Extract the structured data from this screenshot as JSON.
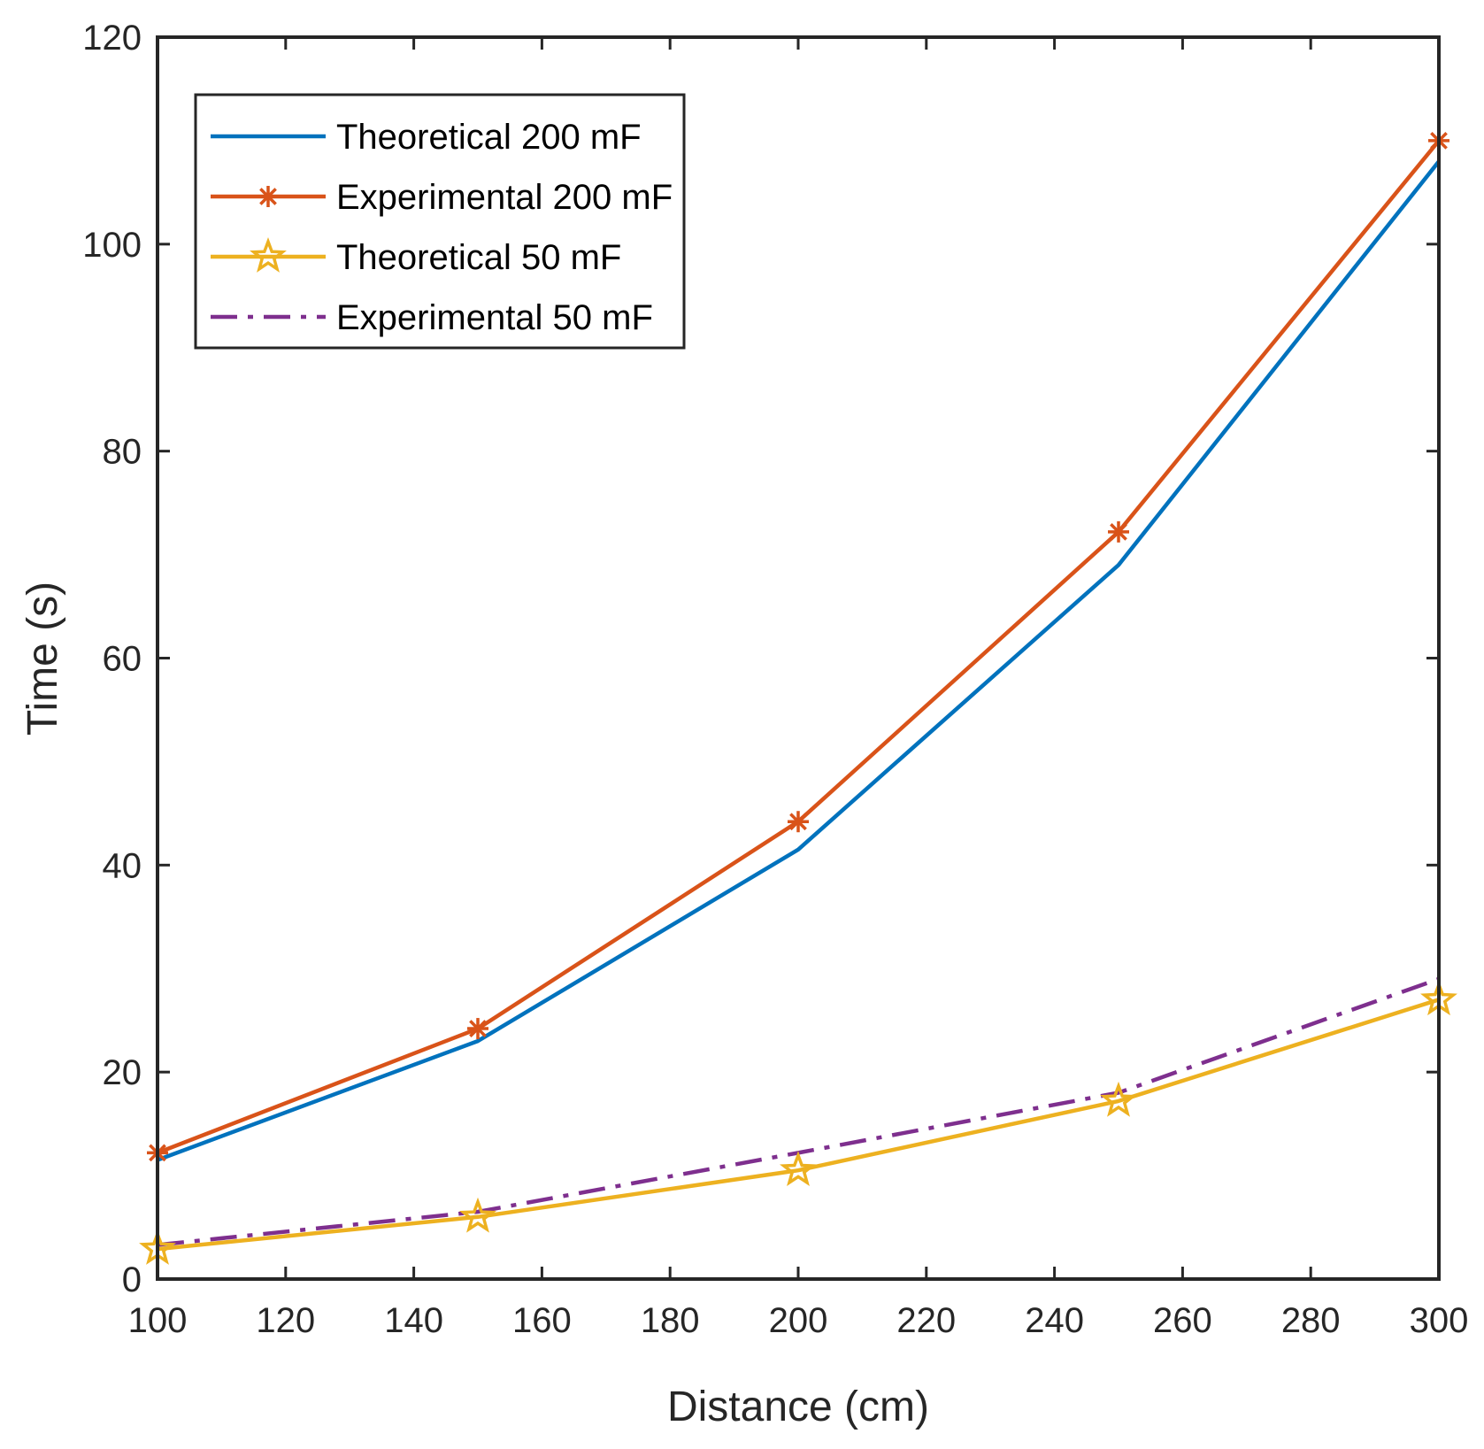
{
  "chart_data": {
    "type": "line",
    "title": "",
    "xlabel": "Distance (cm)",
    "ylabel": "Time (s)",
    "xlim": [
      100,
      300
    ],
    "ylim": [
      0,
      120
    ],
    "xticks": [
      100,
      120,
      140,
      160,
      180,
      200,
      220,
      240,
      260,
      280,
      300
    ],
    "yticks": [
      0,
      20,
      40,
      60,
      80,
      100,
      120
    ],
    "grid": false,
    "legend_position": "top-left",
    "x": [
      100,
      150,
      200,
      250,
      300
    ],
    "series": [
      {
        "name": "Theoretical 200 mF",
        "values": [
          11.5,
          23,
          41.5,
          69,
          108
        ],
        "color": "#0072BD",
        "marker": "none",
        "line_style": "solid"
      },
      {
        "name": "Experimental 200 mF",
        "values": [
          12.2,
          24.2,
          44.2,
          72.2,
          110
        ],
        "color": "#D95319",
        "marker": "asterisk",
        "line_style": "solid"
      },
      {
        "name": "Theoretical 50 mF",
        "values": [
          2.9,
          6.0,
          10.5,
          17.2,
          27.0
        ],
        "color": "#EDB120",
        "marker": "pentagram",
        "line_style": "solid"
      },
      {
        "name": "Experimental 50 mF",
        "values": [
          3.3,
          6.5,
          12.2,
          18.0,
          29.0
        ],
        "color": "#7E2F8E",
        "marker": "none",
        "line_style": "dashdot"
      }
    ]
  }
}
